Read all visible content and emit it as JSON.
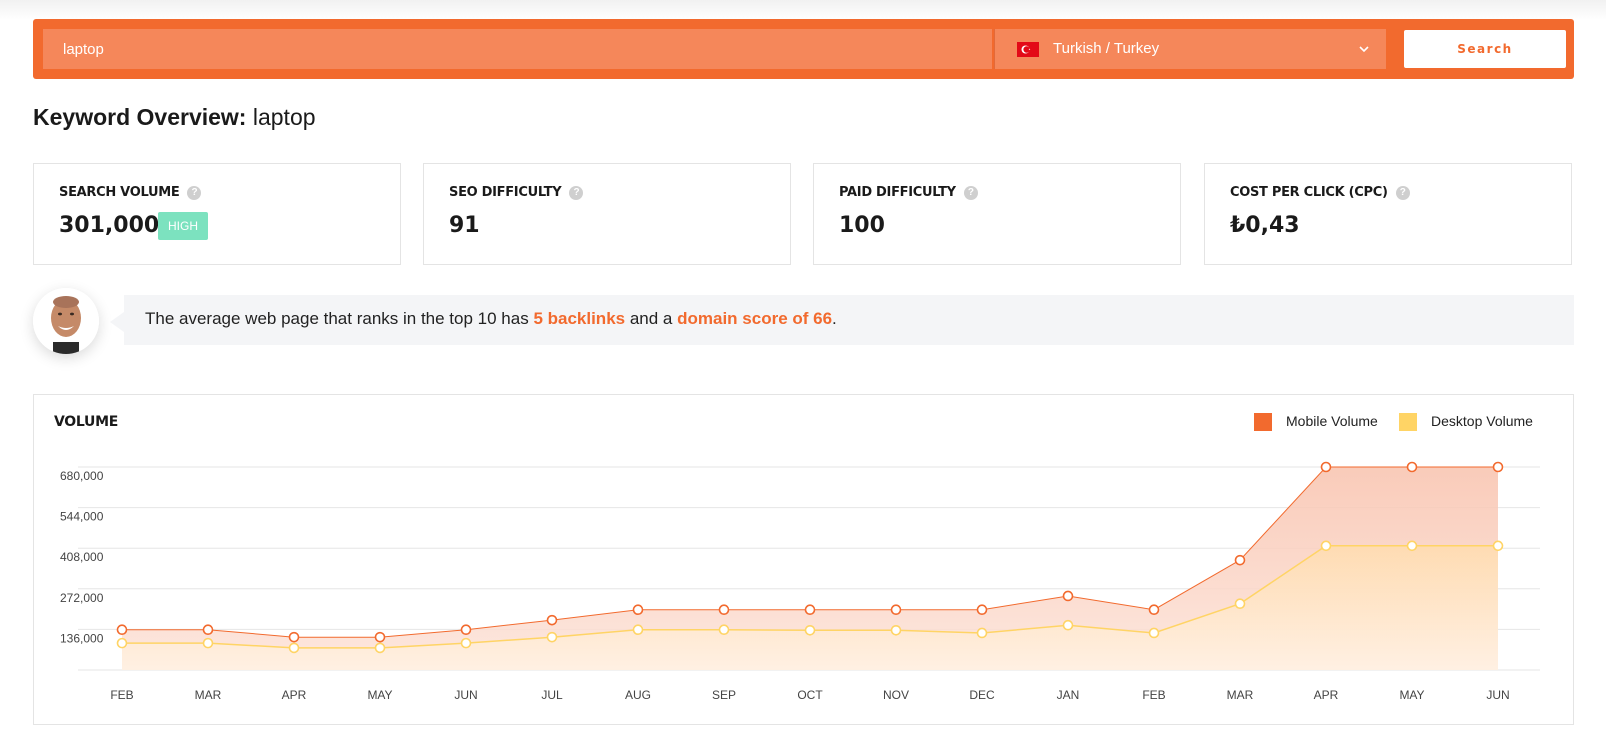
{
  "search": {
    "value": "laptop",
    "language_label": "Turkish / Turkey",
    "flag_icon": "turkey-flag-icon",
    "button_label": "Search"
  },
  "title": {
    "bold": "Keyword Overview:",
    "keyword": "laptop"
  },
  "metrics": [
    {
      "label": "SEARCH VOLUME",
      "value": "301,000",
      "badge": "HIGH"
    },
    {
      "label": "SEO DIFFICULTY",
      "value": "91"
    },
    {
      "label": "PAID DIFFICULTY",
      "value": "100"
    },
    {
      "label": "COST PER CLICK (CPC)",
      "value": "₺0,43"
    }
  ],
  "insight": {
    "prefix": "The average web page that ranks in the top 10 has ",
    "backlinks": "5 backlinks",
    "middle": " and a ",
    "domain_score": "domain score of 66",
    "suffix": "."
  },
  "colors": {
    "accent": "#f26a2e",
    "badge_high": "#7ce2bf",
    "mobile": "#f26a2e",
    "desktop": "#ffd465"
  },
  "chart_data": {
    "type": "area",
    "title": "VOLUME",
    "categories": [
      "FEB",
      "MAR",
      "APR",
      "MAY",
      "JUN",
      "JUL",
      "AUG",
      "SEP",
      "OCT",
      "NOV",
      "DEC",
      "JAN",
      "FEB",
      "MAR",
      "APR",
      "MAY",
      "JUN"
    ],
    "y_ticks": [
      "680,000",
      "544,000",
      "408,000",
      "272,000",
      "136,000"
    ],
    "ylim": [
      0,
      680000
    ],
    "grid": true,
    "legend_position": "top-right",
    "series": [
      {
        "name": "Mobile Volume",
        "color": "#f26a2e",
        "values": [
          135000,
          135000,
          110000,
          110000,
          135000,
          167000,
          202000,
          202000,
          202000,
          202000,
          202000,
          248000,
          202000,
          368000,
          680000,
          680000,
          680000
        ]
      },
      {
        "name": "Desktop Volume",
        "color": "#ffd465",
        "values": [
          90000,
          90000,
          74000,
          74000,
          90000,
          110000,
          135000,
          135000,
          133000,
          133000,
          124000,
          150000,
          124000,
          222000,
          416000,
          416000,
          416000
        ]
      }
    ]
  }
}
